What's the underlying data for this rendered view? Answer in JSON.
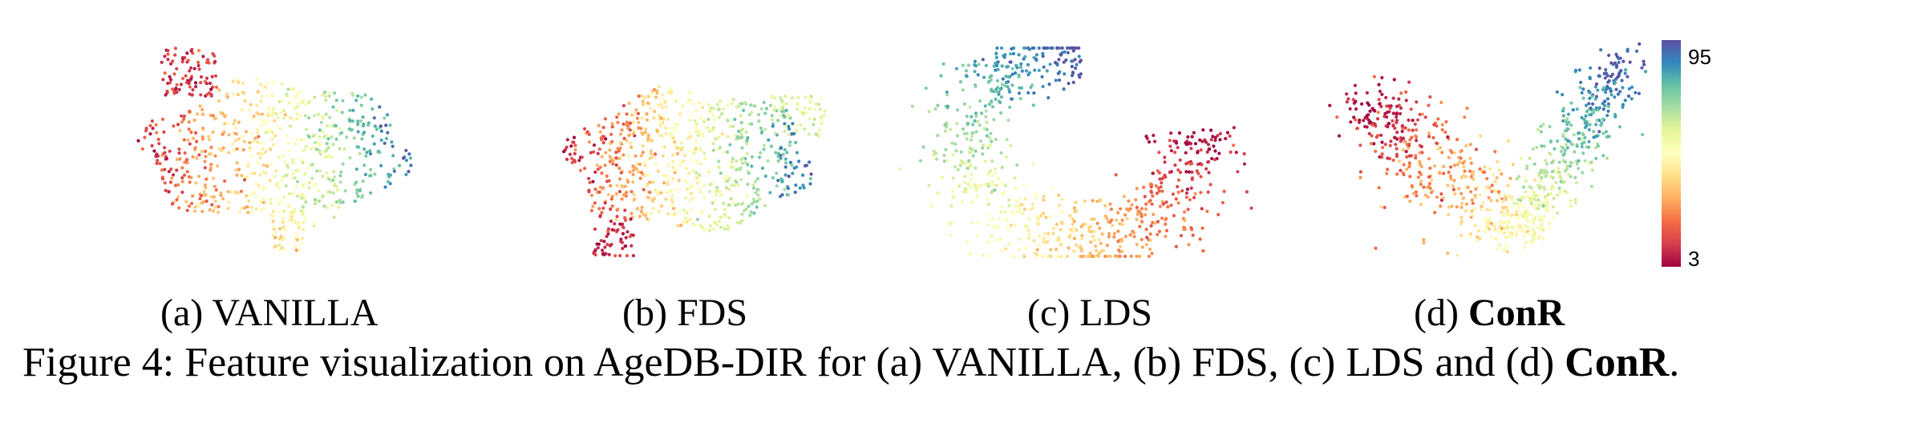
{
  "chart_data": [
    {
      "type": "scatter",
      "label": "(a)",
      "name": "VANILLA",
      "name_bold": false,
      "shape": "blob"
    },
    {
      "type": "scatter",
      "label": "(b)",
      "name": "FDS",
      "name_bold": false,
      "shape": "wide-blob"
    },
    {
      "type": "scatter",
      "label": "(c)",
      "name": "LDS",
      "name_bold": false,
      "shape": "crescent"
    },
    {
      "type": "scatter",
      "label": "(d)",
      "name": "ConR",
      "name_bold": true,
      "shape": "v-shape"
    }
  ],
  "colorbar": {
    "min_label": "3",
    "max_label": "95",
    "colors": [
      "#9e0142",
      "#d53e4f",
      "#f46d43",
      "#fdae61",
      "#fee08b",
      "#ffffbf",
      "#e6f598",
      "#abdda4",
      "#66c2a5",
      "#3288bd",
      "#5e4fa2"
    ]
  },
  "caption": {
    "prefix": "Figure 4: Feature visualization on AgeDB-DIR for (a) VANILLA, (b) FDS, (c) LDS and (d) ",
    "bold": "ConR",
    "suffix": "."
  }
}
